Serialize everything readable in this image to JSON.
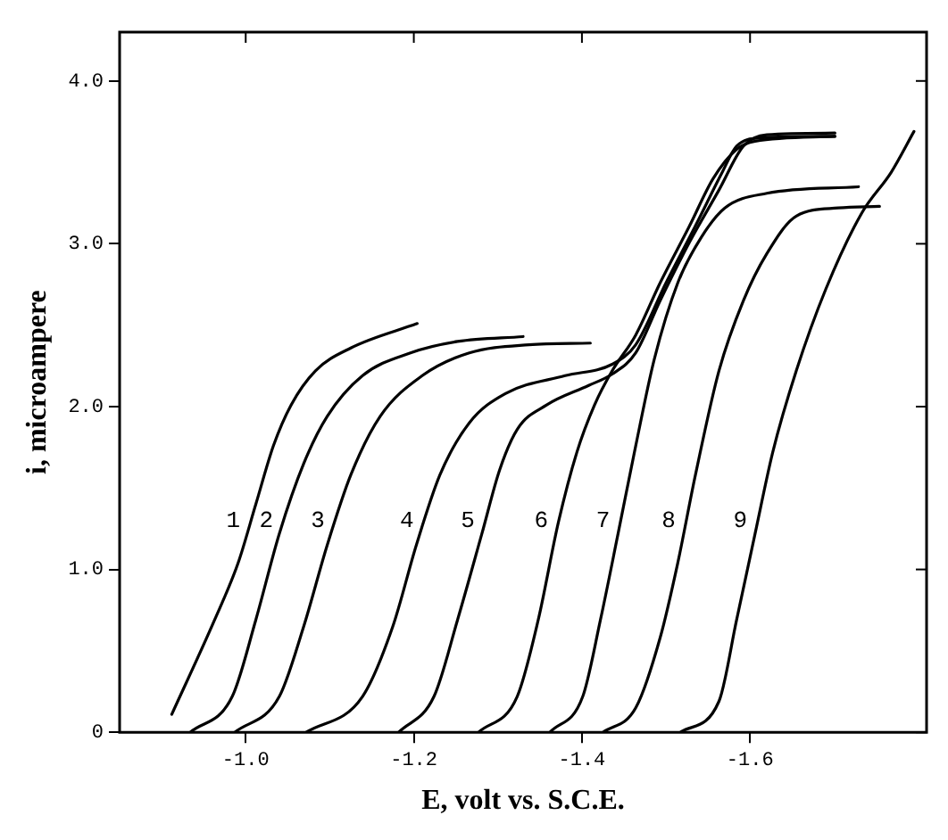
{
  "chart_data": {
    "type": "line",
    "xlabel": "E, volt vs. S.C.E.",
    "ylabel": "i, microampere",
    "xlim": [
      -0.85,
      -1.81
    ],
    "xticks": [
      {
        "value": -1.0,
        "label": "-1.0"
      },
      {
        "value": -1.2,
        "label": "-1.2"
      },
      {
        "value": -1.4,
        "label": "-1.4"
      },
      {
        "value": -1.6,
        "label": "-1.6"
      }
    ],
    "ylim": [
      0,
      4.3
    ],
    "yticks": [
      {
        "value": 0,
        "label": "0"
      },
      {
        "value": 1,
        "label": "1.0"
      },
      {
        "value": 2,
        "label": "2.0"
      },
      {
        "value": 3,
        "label": "3.0"
      },
      {
        "value": 4,
        "label": "4.0"
      }
    ],
    "grid": false,
    "legend": false,
    "marker": "none",
    "line_style": "solid",
    "series": [
      {
        "name": "1",
        "color": "#000000",
        "x": [
          -0.912,
          -0.963,
          -0.991,
          -1.012,
          -1.033,
          -1.054,
          -1.083,
          -1.125,
          -1.204
        ],
        "values": [
          0.11,
          0.69,
          1.04,
          1.4,
          1.76,
          2.01,
          2.22,
          2.36,
          2.51
        ]
      },
      {
        "name": "2",
        "color": "#000000",
        "x": [
          -0.934,
          -0.984,
          -1.012,
          -1.04,
          -1.069,
          -1.097,
          -1.139,
          -1.196,
          -1.252,
          -1.33
        ],
        "values": [
          0,
          0.22,
          0.69,
          1.22,
          1.65,
          1.94,
          2.19,
          2.33,
          2.4,
          2.43
        ]
      },
      {
        "name": "3",
        "color": "#000000",
        "x": [
          -0.987,
          -1.04,
          -1.069,
          -1.097,
          -1.125,
          -1.16,
          -1.21,
          -1.266,
          -1.337,
          -1.41
        ],
        "values": [
          0,
          0.22,
          0.65,
          1.15,
          1.58,
          1.94,
          2.19,
          2.33,
          2.38,
          2.39
        ]
      },
      {
        "name": "4",
        "color": "#000000",
        "x": [
          -1.072,
          -1.139,
          -1.175,
          -1.203,
          -1.231,
          -1.266,
          -1.309,
          -1.38,
          -1.436,
          -1.464,
          -1.5,
          -1.535,
          -1.567,
          -1.584,
          -1.613,
          -1.701
        ],
        "values": [
          0,
          0.22,
          0.65,
          1.15,
          1.58,
          1.9,
          2.08,
          2.19,
          2.26,
          2.38,
          2.76,
          3.11,
          3.44,
          3.6,
          3.65,
          3.66
        ]
      },
      {
        "name": "5",
        "color": "#000000",
        "x": [
          -1.182,
          -1.224,
          -1.252,
          -1.281,
          -1.302,
          -1.323,
          -1.358,
          -1.408,
          -1.436,
          -1.464,
          -1.493,
          -1.528,
          -1.563,
          -1.592,
          -1.62,
          -1.701
        ],
        "values": [
          0,
          0.22,
          0.69,
          1.22,
          1.61,
          1.86,
          2.01,
          2.13,
          2.2,
          2.33,
          2.65,
          3.01,
          3.33,
          3.6,
          3.67,
          3.68
        ]
      },
      {
        "name": "6",
        "color": "#000000",
        "x": [
          -1.277,
          -1.323,
          -1.348,
          -1.372,
          -1.394,
          -1.415,
          -1.436,
          -1.464,
          -1.493,
          -1.528,
          -1.556,
          -1.584,
          -1.606,
          -1.701
        ],
        "values": [
          0,
          0.22,
          0.69,
          1.29,
          1.72,
          2.01,
          2.22,
          2.44,
          2.76,
          3.11,
          3.4,
          3.58,
          3.63,
          3.66
        ]
      },
      {
        "name": "7",
        "color": "#000000",
        "x": [
          -1.362,
          -1.401,
          -1.422,
          -1.443,
          -1.464,
          -1.486,
          -1.514,
          -1.542,
          -1.57,
          -1.62,
          -1.729
        ],
        "values": [
          0,
          0.22,
          0.69,
          1.22,
          1.76,
          2.29,
          2.76,
          3.04,
          3.22,
          3.31,
          3.35
        ]
      },
      {
        "name": "8",
        "color": "#000000",
        "x": [
          -1.425,
          -1.464,
          -1.493,
          -1.514,
          -1.535,
          -1.563,
          -1.592,
          -1.62,
          -1.655,
          -1.705,
          -1.754
        ],
        "values": [
          0,
          0.15,
          0.58,
          1.04,
          1.58,
          2.22,
          2.65,
          2.94,
          3.17,
          3.22,
          3.23
        ]
      },
      {
        "name": "9",
        "color": "#000000",
        "x": [
          -1.517,
          -1.563,
          -1.584,
          -1.606,
          -1.627,
          -1.655,
          -1.69,
          -1.733,
          -1.768,
          -1.795
        ],
        "values": [
          0,
          0.19,
          0.69,
          1.22,
          1.72,
          2.22,
          2.72,
          3.19,
          3.44,
          3.69
        ]
      }
    ]
  }
}
